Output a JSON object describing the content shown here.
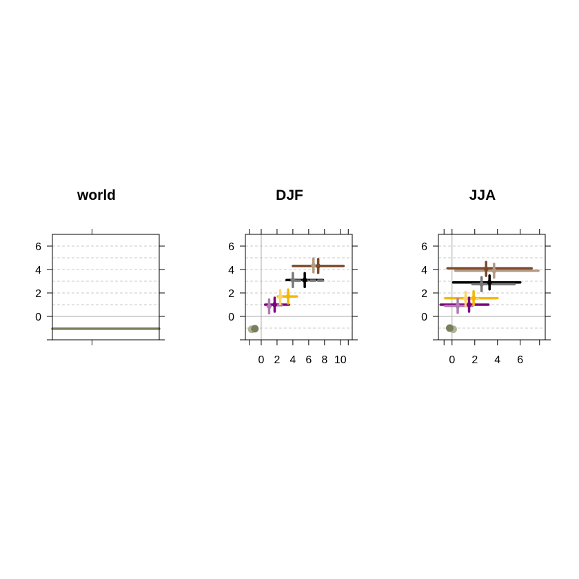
{
  "chart_data": [
    {
      "type": "forest",
      "title": "world",
      "xlabel": "",
      "ylabel": "",
      "ylim": [
        -2,
        7
      ],
      "yticks": [
        0,
        2,
        4,
        6
      ],
      "xticks": [],
      "grid": true,
      "reference_line_y": 0,
      "ranges": [
        {
          "y": -1.05,
          "x_low": null,
          "x_high": null,
          "color": "#7a7e5c",
          "full_width": true
        }
      ],
      "medians": [],
      "points": []
    },
    {
      "type": "forest",
      "title": "DJF",
      "xlabel": "",
      "ylabel": "",
      "xlim": [
        -2,
        11.5
      ],
      "ylim": [
        -2,
        7
      ],
      "xticks": [
        0,
        2,
        4,
        6,
        8,
        10
      ],
      "yticks": [
        0,
        2,
        4,
        6
      ],
      "grid": true,
      "reference_line_y": 0,
      "reference_line_x": 0,
      "ranges": [
        {
          "y": 4.3,
          "x_low": 4.0,
          "x_high": 10.4,
          "color": "#7b4a2a"
        },
        {
          "y": 3.1,
          "x_low": 3.2,
          "x_high": 7.8,
          "color": "#000000"
        },
        {
          "y": 3.05,
          "x_low": 4.3,
          "x_high": 8.0,
          "color": "#777777",
          "dashed": true
        },
        {
          "y": 1.7,
          "x_low": 2.1,
          "x_high": 4.5,
          "color": "#f5b800"
        },
        {
          "y": 1.0,
          "x_low": 0.5,
          "x_high": 3.5,
          "color": "#7d007d"
        },
        {
          "y": 0.95,
          "x_low": 1.6,
          "x_high": 2.6,
          "color": "#b07ab0"
        }
      ],
      "medians": [
        {
          "x": 7.2,
          "y": 4.3,
          "color": "#7b4a2a"
        },
        {
          "x": 6.6,
          "y": 4.35,
          "color": "#b39a82"
        },
        {
          "x": 5.5,
          "y": 3.1,
          "color": "#000000"
        },
        {
          "x": 4.0,
          "y": 3.1,
          "color": "#777777"
        },
        {
          "x": 3.4,
          "y": 1.7,
          "color": "#f5b800"
        },
        {
          "x": 2.4,
          "y": 1.65,
          "color": "#fcd669"
        },
        {
          "x": 1.7,
          "y": 1.0,
          "color": "#7d007d"
        },
        {
          "x": 1.0,
          "y": 0.85,
          "color": "#b07ab0"
        }
      ],
      "points": [
        {
          "x": -1.2,
          "y": -1.1,
          "color": "#b0b39a"
        },
        {
          "x": -0.8,
          "y": -1.05,
          "color": "#7a7e5c"
        }
      ]
    },
    {
      "type": "forest",
      "title": "JJA",
      "xlabel": "",
      "ylabel": "",
      "xlim": [
        -1.2,
        8.2
      ],
      "ylim": [
        -2,
        7
      ],
      "xticks": [
        0,
        2,
        4,
        6
      ],
      "yticks": [
        0,
        2,
        4,
        6
      ],
      "grid": true,
      "reference_line_y": 0,
      "reference_line_x": 0,
      "ranges": [
        {
          "y": 4.1,
          "x_low": -0.4,
          "x_high": 7.0,
          "color": "#7b4a2a"
        },
        {
          "y": 3.9,
          "x_low": 0.3,
          "x_high": 7.6,
          "color": "#b39a82"
        },
        {
          "y": 2.9,
          "x_low": 0.1,
          "x_high": 6.0,
          "color": "#000000"
        },
        {
          "y": 2.75,
          "x_low": 1.8,
          "x_high": 5.5,
          "color": "#777777"
        },
        {
          "y": 1.55,
          "x_low": -0.6,
          "x_high": 4.0,
          "color": "#f5b800"
        },
        {
          "y": 1.5,
          "x_low": 1.2,
          "x_high": 2.3,
          "color": "#fcd669"
        },
        {
          "y": 1.0,
          "x_low": -1.0,
          "x_high": 3.2,
          "color": "#7d007d"
        },
        {
          "y": 0.9,
          "x_low": -0.6,
          "x_high": 1.8,
          "color": "#b07ab0"
        }
      ],
      "medians": [
        {
          "x": 3.0,
          "y": 4.05,
          "color": "#7b4a2a"
        },
        {
          "x": 3.7,
          "y": 3.9,
          "color": "#b39a82"
        },
        {
          "x": 3.3,
          "y": 2.9,
          "color": "#000000"
        },
        {
          "x": 2.6,
          "y": 2.75,
          "color": "#777777"
        },
        {
          "x": 1.9,
          "y": 1.55,
          "color": "#f5b800"
        },
        {
          "x": 1.2,
          "y": 1.5,
          "color": "#fcd669"
        },
        {
          "x": 1.5,
          "y": 1.0,
          "color": "#7d007d"
        },
        {
          "x": 0.5,
          "y": 0.9,
          "color": "#b07ab0"
        }
      ],
      "points": [
        {
          "x": 0.1,
          "y": -1.1,
          "color": "#b0b39a"
        },
        {
          "x": -0.2,
          "y": -1.0,
          "color": "#7a7e5c"
        }
      ]
    }
  ]
}
